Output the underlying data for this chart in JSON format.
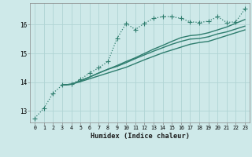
{
  "title": "",
  "xlabel": "Humidex (Indice chaleur)",
  "ylabel": "",
  "background_color": "#cee9e9",
  "grid_color": "#b0d4d4",
  "line_color": "#2e7d6e",
  "xlim": [
    -0.5,
    23.5
  ],
  "ylim": [
    12.6,
    16.75
  ],
  "yticks": [
    13,
    14,
    15,
    16
  ],
  "xtick_labels": [
    "0",
    "1",
    "2",
    "3",
    "4",
    "5",
    "6",
    "7",
    "8",
    "9",
    "10",
    "11",
    "12",
    "13",
    "14",
    "15",
    "16",
    "17",
    "18",
    "19",
    "20",
    "21",
    "22",
    "23"
  ],
  "series": [
    {
      "x": [
        0,
        1,
        2,
        3,
        4,
        5,
        6,
        7,
        8,
        9,
        10,
        11,
        12,
        13,
        14,
        15,
        16,
        17,
        18,
        19,
        20,
        21,
        22,
        23
      ],
      "y": [
        12.75,
        13.1,
        13.62,
        13.9,
        13.93,
        14.1,
        14.32,
        14.5,
        14.72,
        15.52,
        16.05,
        15.83,
        16.05,
        16.22,
        16.28,
        16.28,
        16.22,
        16.1,
        16.08,
        16.12,
        16.28,
        16.08,
        16.1,
        16.55
      ],
      "linestyle": "dotted",
      "marker": "+",
      "markersize": 4.5,
      "linewidth": 0.9
    },
    {
      "x": [
        3,
        4,
        5,
        6,
        7,
        8,
        9,
        10,
        11,
        12,
        13,
        14,
        15,
        16,
        17,
        18,
        19,
        20,
        21,
        22,
        23
      ],
      "y": [
        13.9,
        13.93,
        14.05,
        14.18,
        14.32,
        14.45,
        14.58,
        14.72,
        14.85,
        15.0,
        15.15,
        15.28,
        15.42,
        15.55,
        15.62,
        15.65,
        15.72,
        15.82,
        15.92,
        16.05,
        16.18
      ],
      "linestyle": "solid",
      "marker": "none",
      "linewidth": 1.0
    },
    {
      "x": [
        3,
        4,
        5,
        6,
        7,
        8,
        9,
        10,
        11,
        12,
        13,
        14,
        15,
        16,
        17,
        18,
        19,
        20,
        21,
        22,
        23
      ],
      "y": [
        13.9,
        13.93,
        14.05,
        14.18,
        14.32,
        14.45,
        14.55,
        14.68,
        14.82,
        14.95,
        15.08,
        15.2,
        15.32,
        15.42,
        15.5,
        15.52,
        15.58,
        15.68,
        15.75,
        15.85,
        15.95
      ],
      "linestyle": "solid",
      "marker": "none",
      "linewidth": 1.0
    },
    {
      "x": [
        3,
        4,
        5,
        6,
        7,
        8,
        9,
        10,
        11,
        12,
        13,
        14,
        15,
        16,
        17,
        18,
        19,
        20,
        21,
        22,
        23
      ],
      "y": [
        13.9,
        13.93,
        14.02,
        14.12,
        14.22,
        14.32,
        14.42,
        14.52,
        14.65,
        14.78,
        14.9,
        15.02,
        15.12,
        15.22,
        15.32,
        15.38,
        15.42,
        15.52,
        15.62,
        15.72,
        15.82
      ],
      "linestyle": "solid",
      "marker": "none",
      "linewidth": 1.0
    }
  ]
}
